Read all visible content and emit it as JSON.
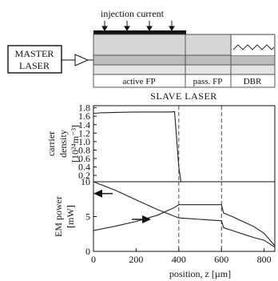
{
  "device": {
    "injection_label": "injection current",
    "master_label_line1": "MASTER",
    "master_label_line2": "LASER",
    "sections": [
      "active FP",
      "pass. FP",
      "DBR"
    ],
    "slave_label": "SLAVE LASER"
  },
  "chart_data": [
    {
      "type": "line",
      "ylabel_lines": [
        "carrier",
        "density",
        "[10²⁴m⁻³]"
      ],
      "xlim": [
        0,
        850
      ],
      "ylim": [
        0.05,
        1.85
      ],
      "yticks": [
        0.2,
        0.4,
        0.6,
        0.8,
        1.0,
        1.2,
        1.4,
        1.6,
        1.8
      ],
      "ytick_labels": [
        "0.2",
        "0.4",
        "0.6",
        "0.8",
        "1.0",
        "1.2",
        "1.4",
        "1.6",
        "1.8"
      ],
      "section_boundaries": [
        400,
        600
      ],
      "series": [
        {
          "x": [
            0,
            30,
            100,
            200,
            300,
            360,
            380,
            400,
            410
          ],
          "y": [
            1.67,
            1.68,
            1.69,
            1.7,
            1.7,
            1.7,
            1.71,
            0.4,
            0.05
          ]
        }
      ]
    },
    {
      "type": "line",
      "ylabel_lines": [
        "EM power",
        "[mW]"
      ],
      "xlabel": "position, z [µm]",
      "xlim": [
        0,
        850
      ],
      "ylim": [
        0,
        10
      ],
      "xticks": [
        0,
        200,
        400,
        600,
        800
      ],
      "xtick_labels": [
        "0",
        "200",
        "400",
        "600",
        "800"
      ],
      "yticks": [
        0,
        5,
        10
      ],
      "ytick_labels": [
        "0",
        "5",
        "10"
      ],
      "section_boundaries": [
        400,
        600
      ],
      "series": [
        {
          "direction": "backward",
          "x": [
            0,
            100,
            200,
            300,
            400,
            450,
            500,
            550,
            600,
            610,
            650,
            700,
            750,
            800,
            850
          ],
          "y": [
            10,
            8.8,
            7.4,
            6.0,
            4.8,
            4.7,
            4.6,
            4.5,
            4.4,
            3.4,
            3.0,
            2.5,
            2.0,
            1.6,
            0.6
          ]
        },
        {
          "direction": "forward",
          "x": [
            0,
            100,
            200,
            300,
            380,
            400,
            450,
            500,
            550,
            600,
            610,
            650,
            700,
            750,
            800,
            850
          ],
          "y": [
            3.0,
            3.6,
            4.3,
            5.2,
            6.3,
            6.7,
            6.7,
            6.7,
            6.7,
            6.7,
            5.5,
            5.0,
            4.3,
            3.6,
            2.6,
            0.8
          ]
        }
      ]
    }
  ]
}
